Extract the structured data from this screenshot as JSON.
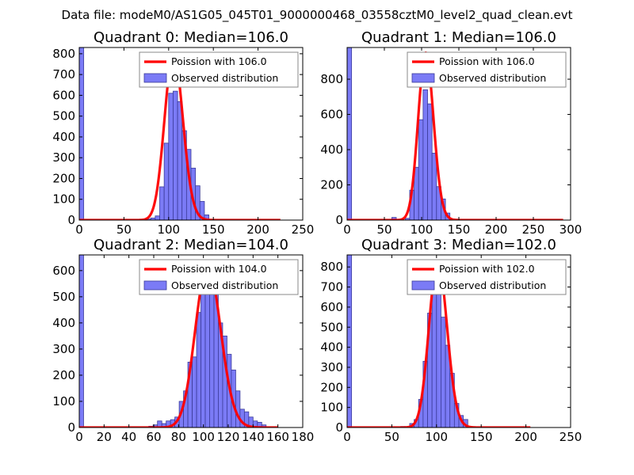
{
  "suptitle": "Data file: modeM0/AS1G05_045T01_9000000468_03558cztM0_level2_quad_clean.evt",
  "colors": {
    "bar_fill": "#7b7bf6",
    "bar_edge": "#3b3b99",
    "curve": "#ff0000",
    "axis": "#000000",
    "legend_edge": "#888888"
  },
  "chart_data": [
    {
      "type": "bar",
      "title": "Quadrant 0: Median=106.0",
      "xlim": [
        0,
        250
      ],
      "ylim": [
        0,
        830
      ],
      "xticks": [
        0,
        50,
        100,
        150,
        200,
        250
      ],
      "yticks": [
        0,
        100,
        200,
        300,
        400,
        500,
        600,
        700,
        800
      ],
      "legend_position": "top-right",
      "legend": {
        "curve": "Poission with 106.0",
        "bars": "Observed distribution"
      },
      "median": 106.0,
      "curve_range": [
        0,
        225
      ],
      "curve_peak": 800,
      "bins": [
        {
          "x0": 0,
          "x1": 5,
          "y": 830
        },
        {
          "x0": 70,
          "x1": 75,
          "y": 3
        },
        {
          "x0": 75,
          "x1": 80,
          "y": 5
        },
        {
          "x0": 80,
          "x1": 85,
          "y": 10
        },
        {
          "x0": 85,
          "x1": 90,
          "y": 20
        },
        {
          "x0": 90,
          "x1": 95,
          "y": 160
        },
        {
          "x0": 95,
          "x1": 100,
          "y": 370
        },
        {
          "x0": 100,
          "x1": 105,
          "y": 610
        },
        {
          "x0": 105,
          "x1": 110,
          "y": 620
        },
        {
          "x0": 110,
          "x1": 115,
          "y": 570
        },
        {
          "x0": 115,
          "x1": 120,
          "y": 430
        },
        {
          "x0": 120,
          "x1": 125,
          "y": 340
        },
        {
          "x0": 125,
          "x1": 130,
          "y": 250
        },
        {
          "x0": 130,
          "x1": 135,
          "y": 165
        },
        {
          "x0": 135,
          "x1": 140,
          "y": 90
        },
        {
          "x0": 140,
          "x1": 145,
          "y": 25
        }
      ]
    },
    {
      "type": "bar",
      "title": "Quadrant 1: Median=106.0",
      "xlim": [
        0,
        300
      ],
      "ylim": [
        0,
        980
      ],
      "xticks": [
        0,
        50,
        100,
        150,
        200,
        250,
        300
      ],
      "yticks": [
        0,
        200,
        400,
        600,
        800
      ],
      "legend_position": "top-right",
      "legend": {
        "curve": "Poission with 106.0",
        "bars": "Observed distribution"
      },
      "median": 106.0,
      "curve_range": [
        0,
        290
      ],
      "curve_peak": 950,
      "bins": [
        {
          "x0": 0,
          "x1": 6,
          "y": 980
        },
        {
          "x0": 60,
          "x1": 66,
          "y": 15
        },
        {
          "x0": 78,
          "x1": 84,
          "y": 10
        },
        {
          "x0": 84,
          "x1": 90,
          "y": 170
        },
        {
          "x0": 90,
          "x1": 96,
          "y": 300
        },
        {
          "x0": 96,
          "x1": 102,
          "y": 570
        },
        {
          "x0": 102,
          "x1": 108,
          "y": 740
        },
        {
          "x0": 108,
          "x1": 114,
          "y": 660
        },
        {
          "x0": 114,
          "x1": 120,
          "y": 380
        },
        {
          "x0": 120,
          "x1": 126,
          "y": 190
        },
        {
          "x0": 126,
          "x1": 132,
          "y": 120
        },
        {
          "x0": 132,
          "x1": 138,
          "y": 40
        }
      ]
    },
    {
      "type": "bar",
      "title": "Quadrant 2: Median=104.0",
      "xlim": [
        0,
        180
      ],
      "ylim": [
        0,
        660
      ],
      "xticks": [
        0,
        20,
        40,
        60,
        80,
        100,
        120,
        140,
        160,
        180
      ],
      "yticks": [
        0,
        100,
        200,
        300,
        400,
        500,
        600
      ],
      "legend_position": "top-right",
      "legend": {
        "curve": "Poission with 104.0",
        "bars": "Observed distribution"
      },
      "median": 104.0,
      "curve_range": [
        0,
        160
      ],
      "curve_peak": 620,
      "bins": [
        {
          "x0": 0,
          "x1": 3.5,
          "y": 660
        },
        {
          "x0": 56,
          "x1": 59.5,
          "y": 5
        },
        {
          "x0": 59.5,
          "x1": 63,
          "y": 10
        },
        {
          "x0": 63,
          "x1": 66.5,
          "y": 25
        },
        {
          "x0": 66.5,
          "x1": 70,
          "y": 15
        },
        {
          "x0": 70,
          "x1": 73.5,
          "y": 25
        },
        {
          "x0": 73.5,
          "x1": 77,
          "y": 30
        },
        {
          "x0": 77,
          "x1": 80.5,
          "y": 40
        },
        {
          "x0": 80.5,
          "x1": 84,
          "y": 100
        },
        {
          "x0": 84,
          "x1": 87.5,
          "y": 140
        },
        {
          "x0": 87.5,
          "x1": 91,
          "y": 250
        },
        {
          "x0": 91,
          "x1": 94.5,
          "y": 270
        },
        {
          "x0": 94.5,
          "x1": 98,
          "y": 440
        },
        {
          "x0": 98,
          "x1": 101.5,
          "y": 580
        },
        {
          "x0": 101.5,
          "x1": 105,
          "y": 540
        },
        {
          "x0": 105,
          "x1": 108.5,
          "y": 550
        },
        {
          "x0": 108.5,
          "x1": 112,
          "y": 520
        },
        {
          "x0": 112,
          "x1": 115.5,
          "y": 400
        },
        {
          "x0": 115.5,
          "x1": 119,
          "y": 350
        },
        {
          "x0": 119,
          "x1": 122.5,
          "y": 280
        },
        {
          "x0": 122.5,
          "x1": 126,
          "y": 220
        },
        {
          "x0": 126,
          "x1": 129.5,
          "y": 140
        },
        {
          "x0": 129.5,
          "x1": 133,
          "y": 70
        },
        {
          "x0": 133,
          "x1": 136.5,
          "y": 60
        },
        {
          "x0": 136.5,
          "x1": 140,
          "y": 40
        },
        {
          "x0": 140,
          "x1": 143.5,
          "y": 25
        },
        {
          "x0": 143.5,
          "x1": 147,
          "y": 20
        },
        {
          "x0": 147,
          "x1": 150.5,
          "y": 10
        }
      ]
    },
    {
      "type": "bar",
      "title": "Quadrant 3: Median=102.0",
      "xlim": [
        0,
        250
      ],
      "ylim": [
        0,
        860
      ],
      "xticks": [
        0,
        50,
        100,
        150,
        200,
        250
      ],
      "yticks": [
        0,
        100,
        200,
        300,
        400,
        500,
        600,
        700,
        800
      ],
      "legend_position": "top-right",
      "legend": {
        "curve": "Poission with 102.0",
        "bars": "Observed distribution"
      },
      "median": 102.0,
      "curve_range": [
        0,
        205
      ],
      "curve_peak": 830,
      "bins": [
        {
          "x0": 0,
          "x1": 5,
          "y": 860
        },
        {
          "x0": 60,
          "x1": 65,
          "y": 5
        },
        {
          "x0": 70,
          "x1": 75,
          "y": 20
        },
        {
          "x0": 75,
          "x1": 80,
          "y": 40
        },
        {
          "x0": 80,
          "x1": 85,
          "y": 140
        },
        {
          "x0": 85,
          "x1": 90,
          "y": 330
        },
        {
          "x0": 90,
          "x1": 95,
          "y": 570
        },
        {
          "x0": 95,
          "x1": 100,
          "y": 730
        },
        {
          "x0": 100,
          "x1": 105,
          "y": 690
        },
        {
          "x0": 105,
          "x1": 110,
          "y": 550
        },
        {
          "x0": 110,
          "x1": 115,
          "y": 410
        },
        {
          "x0": 115,
          "x1": 120,
          "y": 270
        },
        {
          "x0": 120,
          "x1": 125,
          "y": 120
        },
        {
          "x0": 125,
          "x1": 130,
          "y": 60
        },
        {
          "x0": 130,
          "x1": 135,
          "y": 40
        }
      ]
    }
  ]
}
